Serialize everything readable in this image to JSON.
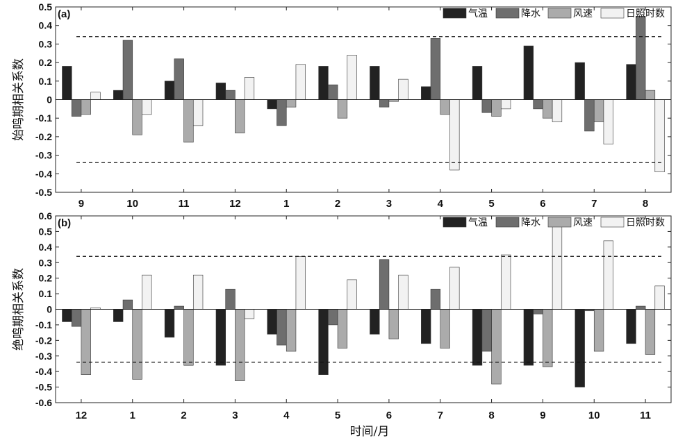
{
  "x_axis_label": "时间/月",
  "chart_data": [
    {
      "type": "bar",
      "panel_label": "(a)",
      "ylabel": "始鸣期相关系数",
      "ylim": [
        -0.5,
        0.5
      ],
      "yticks": [
        "-0.5",
        "-0.4",
        "-0.3",
        "-0.2",
        "-0.1",
        "0",
        "0.1",
        "0.2",
        "0.3",
        "0.4",
        "0.5"
      ],
      "categories": [
        "9",
        "10",
        "11",
        "12",
        "1",
        "2",
        "3",
        "4",
        "5",
        "6",
        "7",
        "8"
      ],
      "threshold_lines": [
        0.34,
        -0.34
      ],
      "legend_position": "top-right",
      "series": [
        {
          "name": "气温",
          "color": "#222222",
          "values": [
            0.18,
            0.05,
            0.1,
            0.09,
            -0.05,
            0.18,
            0.18,
            0.07,
            0.18,
            0.29,
            0.2,
            0.19
          ]
        },
        {
          "name": "降水",
          "color": "#6e6e6e",
          "values": [
            -0.09,
            0.32,
            0.22,
            0.05,
            -0.14,
            0.08,
            -0.04,
            0.33,
            -0.07,
            -0.05,
            -0.17,
            0.45
          ]
        },
        {
          "name": "风速",
          "color": "#ababab",
          "values": [
            -0.08,
            -0.19,
            -0.23,
            -0.18,
            -0.04,
            -0.1,
            -0.01,
            -0.08,
            -0.09,
            -0.1,
            -0.12,
            0.05
          ]
        },
        {
          "name": "日照时数",
          "color": "#f2f2f2",
          "values": [
            0.04,
            -0.08,
            -0.14,
            0.12,
            0.19,
            0.24,
            0.11,
            -0.38,
            -0.05,
            -0.12,
            -0.24,
            -0.39
          ]
        }
      ]
    },
    {
      "type": "bar",
      "panel_label": "(b)",
      "ylabel": "绝鸣期相关系数",
      "ylim": [
        -0.6,
        0.6
      ],
      "yticks": [
        "-0.6",
        "-0.5",
        "-0.4",
        "-0.3",
        "-0.2",
        "-0.1",
        "0",
        "0.1",
        "0.2",
        "0.3",
        "0.4",
        "0.5",
        "0.6"
      ],
      "categories": [
        "12",
        "1",
        "2",
        "3",
        "4",
        "5",
        "6",
        "7",
        "8",
        "9",
        "10",
        "11"
      ],
      "threshold_lines": [
        0.34,
        -0.34
      ],
      "legend_position": "top-right",
      "series": [
        {
          "name": "气温",
          "color": "#222222",
          "values": [
            -0.08,
            -0.08,
            -0.18,
            -0.36,
            -0.16,
            -0.42,
            -0.16,
            -0.22,
            -0.36,
            -0.36,
            -0.5,
            -0.22
          ]
        },
        {
          "name": "降水",
          "color": "#6e6e6e",
          "values": [
            -0.11,
            0.06,
            0.02,
            0.13,
            -0.23,
            -0.1,
            0.32,
            0.13,
            -0.27,
            -0.03,
            -0.01,
            0.02
          ]
        },
        {
          "name": "风速",
          "color": "#ababab",
          "values": [
            -0.42,
            -0.45,
            -0.36,
            -0.46,
            -0.27,
            -0.25,
            -0.19,
            -0.25,
            -0.48,
            -0.37,
            -0.27,
            -0.29
          ]
        },
        {
          "name": "日照时数",
          "color": "#f2f2f2",
          "values": [
            0.01,
            0.22,
            0.22,
            -0.06,
            0.34,
            0.19,
            0.22,
            0.27,
            0.35,
            0.55,
            0.44,
            0.15
          ]
        }
      ]
    }
  ]
}
